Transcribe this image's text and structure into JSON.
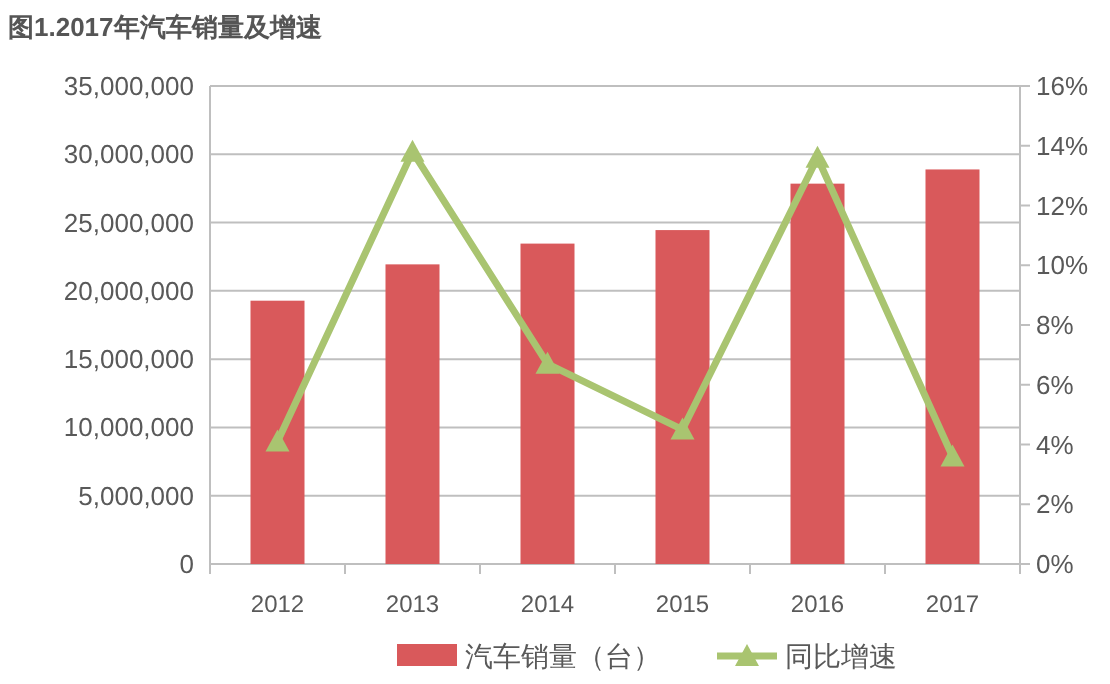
{
  "chart_data": {
    "type": "bar",
    "title": "图1.2017年汽车销量及增速",
    "categories": [
      "2012",
      "2013",
      "2014",
      "2015",
      "2016",
      "2017"
    ],
    "series": [
      {
        "name": "汽车销量（台）",
        "color": "#d9595b",
        "values": [
          19280000,
          21940000,
          23460000,
          24450000,
          27850000,
          28890000
        ]
      },
      {
        "name": "同比增速",
        "type": "line",
        "axis": "y2",
        "color": "#a9c470",
        "marker": "triangle",
        "values": [
          4.1,
          13.8,
          6.7,
          4.5,
          13.6,
          3.6
        ]
      }
    ],
    "ylim": [
      0,
      35000000
    ],
    "yticks": [
      {
        "value": 0,
        "label": "0"
      },
      {
        "value": 5000000,
        "label": "5,000,000"
      },
      {
        "value": 10000000,
        "label": "10,000,000"
      },
      {
        "value": 15000000,
        "label": "15,000,000"
      },
      {
        "value": 20000000,
        "label": "20,000,000"
      },
      {
        "value": 25000000,
        "label": "25,000,000"
      },
      {
        "value": 30000000,
        "label": "30,000,000"
      },
      {
        "value": 35000000,
        "label": "35,000,000"
      }
    ],
    "y2lim": [
      0,
      16
    ],
    "y2ticks": [
      {
        "value": 0,
        "label": "0%"
      },
      {
        "value": 2,
        "label": "2%"
      },
      {
        "value": 4,
        "label": "4%"
      },
      {
        "value": 6,
        "label": "6%"
      },
      {
        "value": 8,
        "label": "8%"
      },
      {
        "value": 10,
        "label": "10%"
      },
      {
        "value": 12,
        "label": "12%"
      },
      {
        "value": 14,
        "label": "14%"
      },
      {
        "value": 16,
        "label": "16%"
      }
    ],
    "grid": "y",
    "legend": "bottom"
  }
}
